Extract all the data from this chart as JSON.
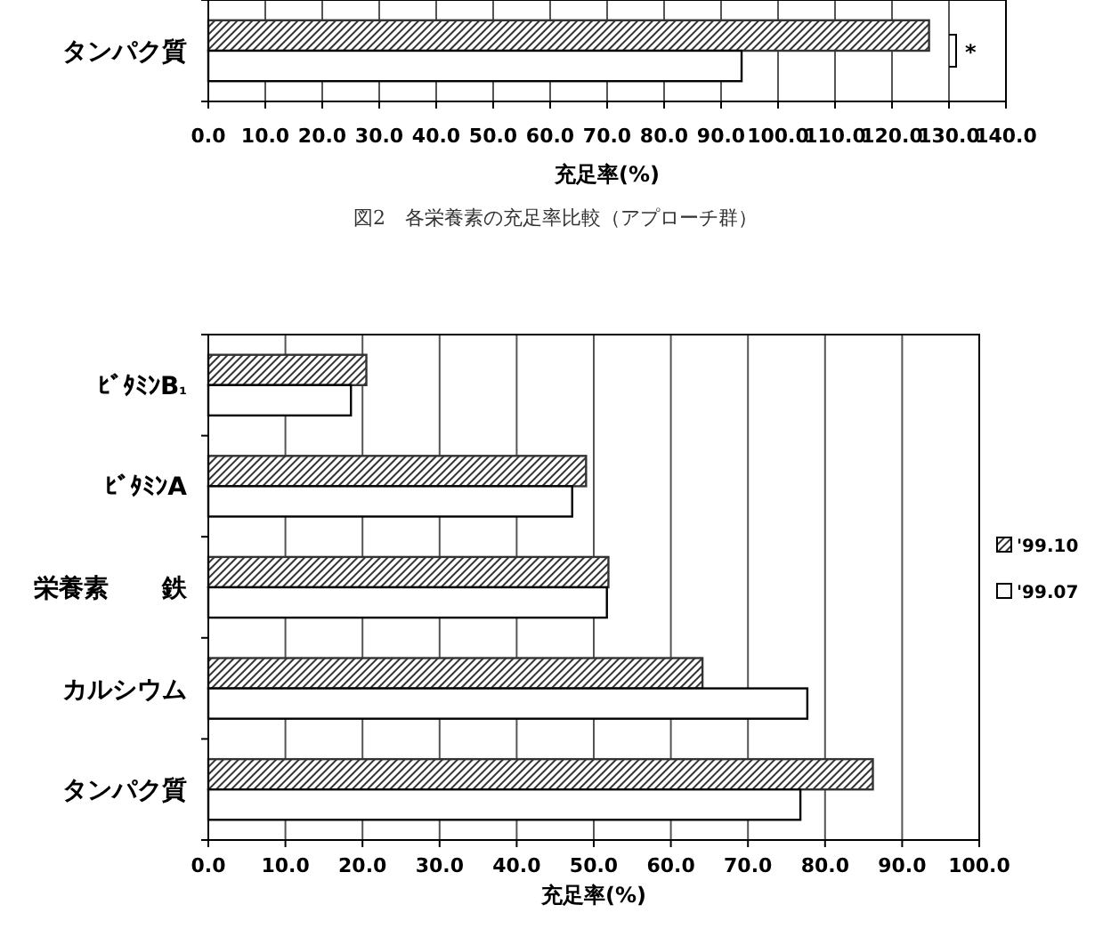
{
  "chart_data": [
    {
      "type": "bar",
      "orientation": "horizontal",
      "categories": [
        "タンパク質"
      ],
      "series": [
        {
          "color": "#333333",
          "values": [
            126.5
          ]
        },
        {
          "color": "#ffffff",
          "values": [
            93.6
          ]
        }
      ],
      "xlim": [
        0,
        140
      ],
      "xticks": [
        {
          "value": 0,
          "label": "0.0"
        },
        {
          "value": 10,
          "label": "10.0"
        },
        {
          "value": 20,
          "label": "20.0"
        },
        {
          "value": 30,
          "label": "30.0"
        },
        {
          "value": 40,
          "label": "40.0"
        },
        {
          "value": 50,
          "label": "50.0"
        },
        {
          "value": 60,
          "label": "60.0"
        },
        {
          "value": 70,
          "label": "70.0"
        },
        {
          "value": 80,
          "label": "80.0"
        },
        {
          "value": 90,
          "label": "90.0"
        },
        {
          "value": 100,
          "label": "100.0"
        },
        {
          "value": 110,
          "label": "110.0"
        },
        {
          "value": 120,
          "label": "120.0"
        },
        {
          "value": 130,
          "label": "130.0"
        },
        {
          "value": 140,
          "label": "140.0"
        }
      ],
      "xlabel": "充足率(%)",
      "grid": "x",
      "annotations": [
        "*",
        "図2　各栄養素の充足率比較（アプローチ群）"
      ]
    },
    {
      "type": "bar",
      "orientation": "horizontal",
      "categories": [
        "ﾋﾞﾀﾐﾝB₁",
        "ﾋﾞﾀﾐﾝA",
        "鉄",
        "カルシウム",
        "タンパク質"
      ],
      "series": [
        {
          "name": "'99.10",
          "color": "#333333",
          "values": [
            20.5,
            49.0,
            51.9,
            64.1,
            86.2
          ]
        },
        {
          "name": "'99.07",
          "color": "#ffffff",
          "values": [
            18.5,
            47.2,
            51.7,
            77.7,
            76.8
          ]
        }
      ],
      "xlim": [
        0,
        100
      ],
      "xticks": [
        {
          "value": 0,
          "label": "0.0"
        },
        {
          "value": 10,
          "label": "10.0"
        },
        {
          "value": 20,
          "label": "20.0"
        },
        {
          "value": 30,
          "label": "30.0"
        },
        {
          "value": 40,
          "label": "40.0"
        },
        {
          "value": 50,
          "label": "50.0"
        },
        {
          "value": 60,
          "label": "60.0"
        },
        {
          "value": 70,
          "label": "70.0"
        },
        {
          "value": 80,
          "label": "80.0"
        },
        {
          "value": 90,
          "label": "90.0"
        },
        {
          "value": 100,
          "label": "100.0"
        }
      ],
      "xlabel": "充足率(%)",
      "ylabel": "栄養素",
      "grid": "x",
      "legend": "right"
    }
  ]
}
